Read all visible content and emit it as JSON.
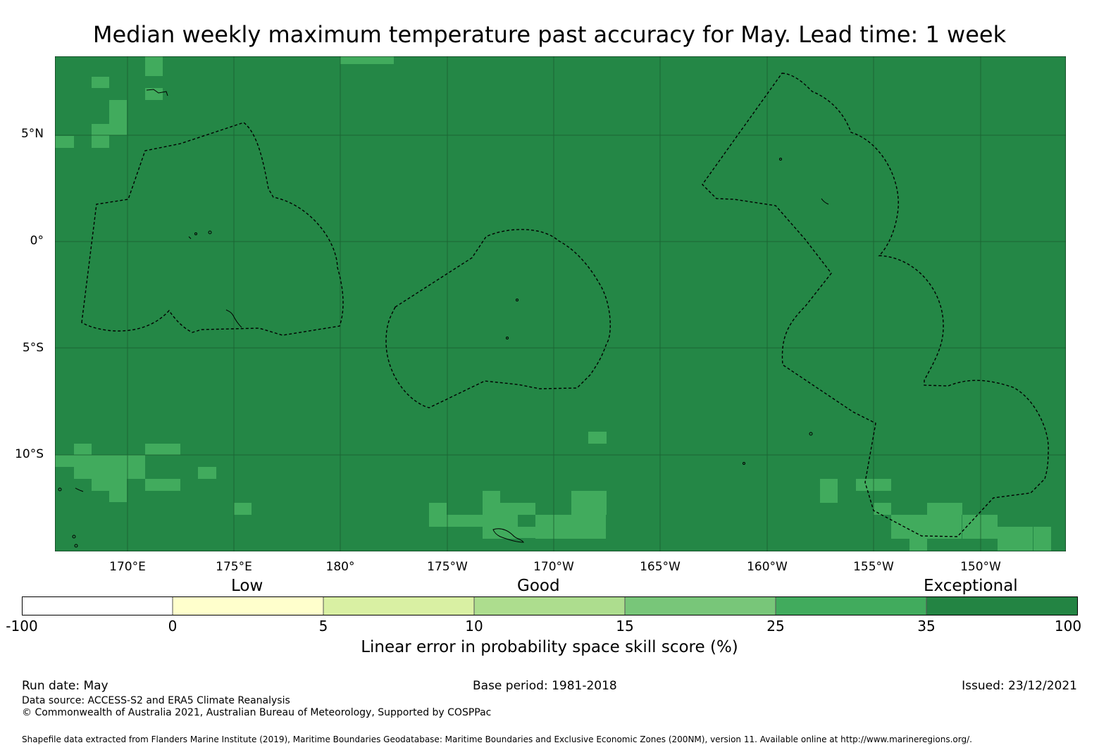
{
  "title": "Median weekly maximum temperature past accuracy for May. Lead time: 1 week",
  "map": {
    "background_color": "#248746",
    "lat_labels": [
      "5°N",
      "0°",
      "5°S",
      "10°S"
    ],
    "lon_labels": [
      "170°E",
      "175°E",
      "180°",
      "175°W",
      "170°W",
      "165°W",
      "160°W",
      "155°W",
      "150°W"
    ]
  },
  "colorbar": {
    "categories": [
      "Low",
      "Good",
      "Exceptional"
    ],
    "ticks": [
      "-100",
      "0",
      "5",
      "10",
      "15",
      "25",
      "35",
      "100"
    ],
    "colors": [
      "#ffffff",
      "#ffffcc",
      "#d9f0a3",
      "#addd8e",
      "#78c679",
      "#41ab5d",
      "#238443"
    ],
    "label": "Linear error in probability space skill score (%)"
  },
  "footer": {
    "run_date": "Run date: May",
    "base_period": "Base period: 1981-2018",
    "issued": "Issued: 23/12/2021",
    "data_source": "Data source: ACCESS-S2 and ERA5 Climate Reanalysis",
    "copyright": "© Commonwealth of Australia 2021, Australian Bureau of Meteorology, Supported by COSPPac",
    "shapefile_note": "Shapefile data extracted from Flanders Marine Institute (2019), Maritime Boundaries Geodatabase: Maritime Boundaries and Exclusive Economic Zones (200NM), version 11. Available online at http://www.marineregions.org/."
  }
}
